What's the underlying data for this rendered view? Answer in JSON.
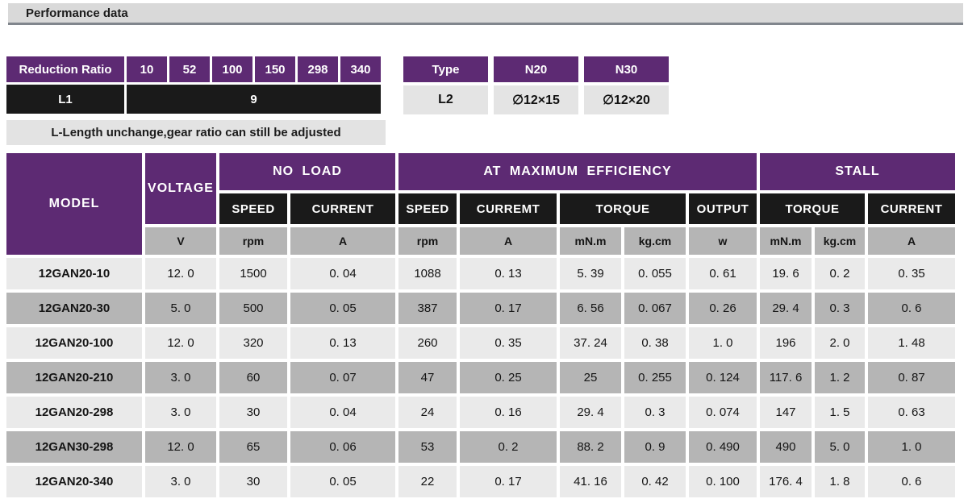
{
  "section_title": "Performance data",
  "reduction_table": {
    "header_label": "Reduction Ratio",
    "ratios": [
      "10",
      "52",
      "100",
      "150",
      "298",
      "340"
    ],
    "row_label": "L1",
    "row_value": "9",
    "note": "L-Length unchange,gear ratio can still be adjusted"
  },
  "type_table": {
    "header_label": "Type",
    "col1_label": "N20",
    "col2_label": "N30",
    "row_label": "L2",
    "col1_value": "∅12×15",
    "col2_value": "∅12×20"
  },
  "performance_table": {
    "group_headers": {
      "model": "MODEL",
      "voltage": "VOLTAGE",
      "no_load": "NO LOAD",
      "max_efficiency": "AT MAXIMUM EFFICIENCY",
      "stall": "STALL"
    },
    "sub_headers": [
      "SPEED",
      "CURRENT",
      "SPEED",
      "CURREMT",
      "TORQUE",
      "OUTPUT",
      "TORQUE",
      "CURRENT"
    ],
    "units": [
      "V",
      "rpm",
      "A",
      "rpm",
      "A",
      "mN.m",
      "kg.cm",
      "w",
      "mN.m",
      "kg.cm",
      "A"
    ],
    "rows": [
      {
        "model": "12GAN20-10",
        "values": [
          "12. 0",
          "1500",
          "0. 04",
          "1088",
          "0. 13",
          "5. 39",
          "0. 055",
          "0. 61",
          "19. 6",
          "0. 2",
          "0. 35"
        ]
      },
      {
        "model": "12GAN20-30",
        "values": [
          "5. 0",
          "500",
          "0. 05",
          "387",
          "0. 17",
          "6. 56",
          "0. 067",
          "0. 26",
          "29. 4",
          "0. 3",
          "0. 6"
        ]
      },
      {
        "model": "12GAN20-100",
        "values": [
          "12. 0",
          "320",
          "0. 13",
          "260",
          "0. 35",
          "37. 24",
          "0. 38",
          "1. 0",
          "196",
          "2. 0",
          "1. 48"
        ]
      },
      {
        "model": "12GAN20-210",
        "values": [
          "3. 0",
          "60",
          "0. 07",
          "47",
          "0. 25",
          "25",
          "0. 255",
          "0. 124",
          "117. 6",
          "1. 2",
          "0. 87"
        ]
      },
      {
        "model": "12GAN20-298",
        "values": [
          "3. 0",
          "30",
          "0. 04",
          "24",
          "0. 16",
          "29. 4",
          "0. 3",
          "0. 074",
          "147",
          "1. 5",
          "0. 63"
        ]
      },
      {
        "model": "12GAN30-298",
        "values": [
          "12. 0",
          "65",
          "0. 06",
          "53",
          "0. 2",
          "88. 2",
          "0. 9",
          "0. 490",
          "490",
          "5. 0",
          "1. 0"
        ]
      },
      {
        "model": "12GAN20-340",
        "values": [
          "3. 0",
          "30",
          "0. 05",
          "22",
          "0. 17",
          "41. 16",
          "0. 42",
          "0. 100",
          "176. 4",
          "1. 8",
          "0. 6"
        ]
      }
    ]
  },
  "colors": {
    "accent_purple": "#5d2a73",
    "header_black": "#1a1a1a",
    "row_light": "#eaeaea",
    "row_dark": "#b5b5b5",
    "title_bar_gray": "#d9d9d9"
  }
}
